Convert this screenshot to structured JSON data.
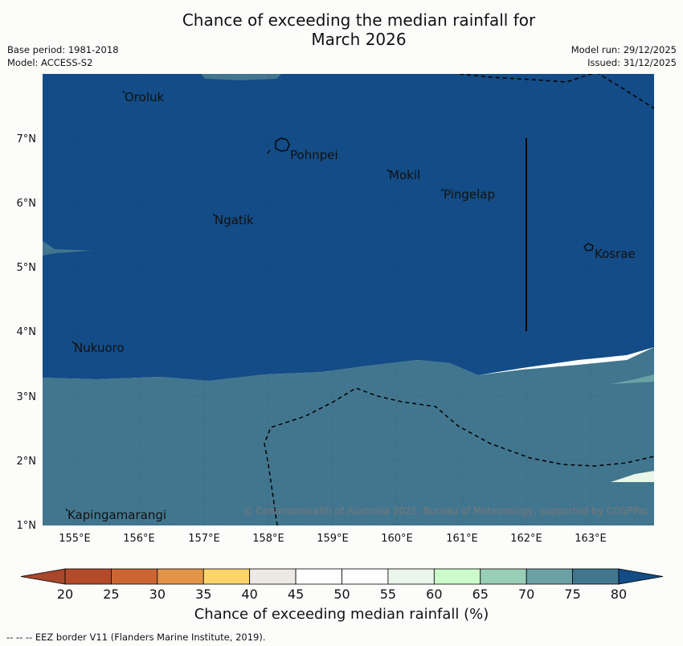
{
  "title_line1": "Chance of exceeding the median rainfall for",
  "title_line2": "March 2026",
  "base_period": "Base period: 1981-2018",
  "model": "Model: ACCESS-S2",
  "model_run": "Model run: 29/12/2025",
  "issued": "Issued: 31/12/2025",
  "places": [
    {
      "name": "Oroluk"
    },
    {
      "name": "Pohnpei"
    },
    {
      "name": "Mokil"
    },
    {
      "name": "Pingelap"
    },
    {
      "name": "Ngatik"
    },
    {
      "name": "Kosrae"
    },
    {
      "name": "Nukuoro"
    },
    {
      "name": "Kapingamarangi"
    }
  ],
  "lat_ticks": [
    "7°N",
    "6°N",
    "5°N",
    "4°N",
    "3°N",
    "2°N",
    "1°N"
  ],
  "lon_ticks": [
    "155°E",
    "156°E",
    "157°E",
    "158°E",
    "159°E",
    "160°E",
    "161°E",
    "162°E",
    "163°E"
  ],
  "credit": "© Commonwealth of Australia 2025, Bureau of Meteorology, supported by COSPPac",
  "colorbar": {
    "ticks": [
      "20",
      "25",
      "30",
      "35",
      "40",
      "45",
      "50",
      "55",
      "60",
      "65",
      "70",
      "75",
      "80"
    ],
    "colors": [
      "#a8472a",
      "#b34a29",
      "#cd6532",
      "#e39447",
      "#fdd36b",
      "#ece9e5",
      "#ffffff",
      "#fefefe",
      "#eaf6ea",
      "#ccfccc",
      "#9acfb7",
      "#6ba1a4",
      "#42768f",
      "#134c86"
    ],
    "label": "Chance of exceeding median rainfall (%)"
  },
  "footnote": "--  --  -- EEZ border V11 (Flanders Marine Institute, 2019)."
}
